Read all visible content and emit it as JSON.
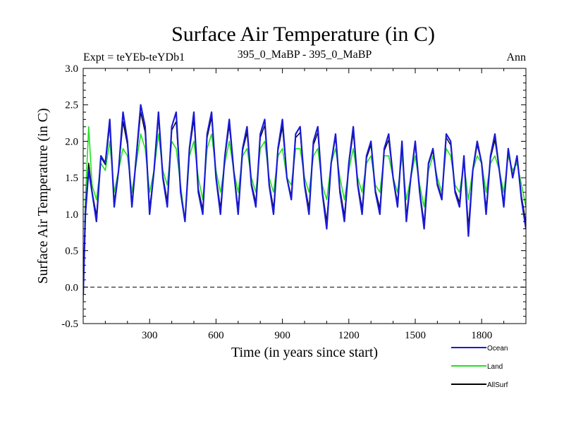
{
  "chart_data": {
    "type": "line",
    "title": "Surface Air Temperature (in C)",
    "subtitle_left": "Expt = teYEb-teYDb1",
    "subtitle_center": "395_0_MaBP - 395_0_MaBP",
    "subtitle_right": "Ann",
    "xlabel": "Time (in years since start)",
    "ylabel": "Surface Air Temperature (in C)",
    "xlim": [
      0,
      2000
    ],
    "ylim": [
      -0.5,
      3.0
    ],
    "x_ticks": [
      300,
      600,
      900,
      1200,
      1500,
      1800
    ],
    "y_ticks": [
      -0.5,
      0.0,
      0.5,
      1.0,
      1.5,
      2.0,
      2.5,
      3.0
    ],
    "y_tick_labels": [
      "-0.5",
      "0.0",
      "0.5",
      "1.0",
      "1.5",
      "2.0",
      "2.5",
      "3.0"
    ],
    "reference_line": {
      "y": 0.0,
      "style": "dashed"
    },
    "legend_position": "bottom-right",
    "colors": {
      "Ocean": "#1a1ad6",
      "Land": "#22e022",
      "AllSurf": "#000000"
    },
    "series": [
      {
        "name": "Ocean",
        "x": [
          0,
          10,
          25,
          40,
          60,
          80,
          100,
          120,
          140,
          160,
          180,
          200,
          220,
          240,
          260,
          280,
          300,
          320,
          340,
          360,
          380,
          400,
          420,
          440,
          460,
          480,
          500,
          520,
          540,
          560,
          580,
          600,
          620,
          640,
          660,
          680,
          700,
          720,
          740,
          760,
          780,
          800,
          820,
          840,
          860,
          880,
          900,
          920,
          940,
          960,
          980,
          1000,
          1020,
          1040,
          1060,
          1080,
          1100,
          1120,
          1140,
          1160,
          1180,
          1200,
          1220,
          1240,
          1260,
          1280,
          1300,
          1320,
          1340,
          1360,
          1380,
          1400,
          1420,
          1440,
          1460,
          1480,
          1500,
          1520,
          1540,
          1560,
          1580,
          1600,
          1620,
          1640,
          1660,
          1680,
          1700,
          1720,
          1740,
          1760,
          1780,
          1800,
          1820,
          1840,
          1860,
          1880,
          1900,
          1920,
          1940,
          1960,
          1980,
          2000
        ],
        "values": [
          -0.1,
          1.0,
          1.6,
          1.3,
          0.9,
          1.8,
          1.7,
          2.3,
          1.1,
          1.6,
          2.4,
          2.0,
          1.1,
          1.8,
          2.5,
          2.2,
          1.0,
          1.6,
          2.4,
          1.5,
          1.1,
          2.2,
          2.4,
          1.3,
          0.9,
          1.9,
          2.4,
          1.3,
          1.0,
          2.1,
          2.4,
          1.5,
          1.0,
          1.8,
          2.3,
          1.6,
          1.0,
          1.9,
          2.2,
          1.4,
          1.1,
          2.1,
          2.3,
          1.4,
          1.0,
          1.9,
          2.3,
          1.5,
          1.2,
          2.1,
          2.2,
          1.4,
          1.0,
          2.0,
          2.2,
          1.3,
          0.8,
          1.7,
          2.1,
          1.3,
          0.9,
          1.7,
          2.2,
          1.4,
          1.0,
          1.8,
          2.0,
          1.3,
          1.0,
          1.9,
          2.1,
          1.5,
          1.1,
          2.0,
          0.9,
          1.5,
          2.0,
          1.3,
          0.8,
          1.7,
          1.9,
          1.4,
          1.2,
          2.1,
          2.0,
          1.3,
          1.1,
          1.8,
          0.7,
          1.6,
          2.0,
          1.7,
          1.0,
          1.8,
          2.1,
          1.6,
          1.1,
          1.9,
          1.5,
          1.8,
          1.2,
          0.8
        ]
      },
      {
        "name": "Land",
        "x": [
          0,
          10,
          25,
          40,
          60,
          80,
          100,
          120,
          140,
          160,
          180,
          200,
          220,
          240,
          260,
          280,
          300,
          320,
          340,
          360,
          380,
          400,
          420,
          440,
          460,
          480,
          500,
          520,
          540,
          560,
          580,
          600,
          620,
          640,
          660,
          680,
          700,
          720,
          740,
          760,
          780,
          800,
          820,
          840,
          860,
          880,
          900,
          920,
          940,
          960,
          980,
          1000,
          1020,
          1040,
          1060,
          1080,
          1100,
          1120,
          1140,
          1160,
          1180,
          1200,
          1220,
          1240,
          1260,
          1280,
          1300,
          1320,
          1340,
          1360,
          1380,
          1400,
          1420,
          1440,
          1460,
          1480,
          1500,
          1520,
          1540,
          1560,
          1580,
          1600,
          1620,
          1640,
          1660,
          1680,
          1700,
          1720,
          1740,
          1760,
          1780,
          1800,
          1820,
          1840,
          1860,
          1880,
          1900,
          1920,
          1940,
          1960,
          1980,
          2000
        ],
        "values": [
          -0.2,
          1.2,
          2.2,
          1.4,
          1.2,
          1.7,
          1.6,
          2.0,
          1.3,
          1.6,
          1.9,
          1.8,
          1.3,
          1.7,
          2.1,
          1.9,
          1.3,
          1.6,
          2.1,
          1.6,
          1.4,
          2.0,
          1.9,
          1.4,
          0.9,
          1.8,
          2.0,
          1.5,
          1.2,
          1.9,
          2.1,
          1.6,
          1.3,
          1.7,
          2.0,
          1.6,
          1.3,
          1.8,
          1.9,
          1.5,
          1.3,
          1.9,
          2.0,
          1.5,
          1.3,
          1.8,
          1.9,
          1.5,
          1.4,
          1.9,
          1.9,
          1.5,
          1.3,
          1.8,
          1.9,
          1.4,
          1.2,
          1.7,
          1.9,
          1.5,
          1.2,
          1.6,
          1.9,
          1.5,
          1.3,
          1.7,
          1.8,
          1.4,
          1.3,
          1.8,
          1.8,
          1.5,
          1.3,
          1.8,
          1.2,
          1.5,
          1.8,
          1.4,
          1.1,
          1.6,
          1.8,
          1.5,
          1.3,
          1.9,
          1.8,
          1.4,
          1.3,
          1.7,
          1.2,
          1.6,
          1.8,
          1.7,
          1.3,
          1.7,
          1.8,
          1.6,
          1.3,
          1.8,
          1.6,
          1.7,
          1.4,
          1.1
        ]
      },
      {
        "name": "AllSurf",
        "x": [
          0,
          10,
          25,
          40,
          60,
          80,
          100,
          120,
          140,
          160,
          180,
          200,
          220,
          240,
          260,
          280,
          300,
          320,
          340,
          360,
          380,
          400,
          420,
          440,
          460,
          480,
          500,
          520,
          540,
          560,
          580,
          600,
          620,
          640,
          660,
          680,
          700,
          720,
          740,
          760,
          780,
          800,
          820,
          840,
          860,
          880,
          900,
          920,
          940,
          960,
          980,
          1000,
          1020,
          1040,
          1060,
          1080,
          1100,
          1120,
          1140,
          1160,
          1180,
          1200,
          1220,
          1240,
          1260,
          1280,
          1300,
          1320,
          1340,
          1360,
          1380,
          1400,
          1420,
          1440,
          1460,
          1480,
          1500,
          1520,
          1540,
          1560,
          1580,
          1600,
          1620,
          1640,
          1660,
          1680,
          1700,
          1720,
          1740,
          1760,
          1780,
          1800,
          1820,
          1840,
          1860,
          1880,
          1900,
          1920,
          1940,
          1960,
          1980,
          2000
        ],
        "values": [
          -0.1,
          1.05,
          1.7,
          1.32,
          0.98,
          1.78,
          1.68,
          2.22,
          1.16,
          1.6,
          2.27,
          1.95,
          1.16,
          1.77,
          2.4,
          2.12,
          1.08,
          1.6,
          2.32,
          1.53,
          1.18,
          2.15,
          2.27,
          1.33,
          0.9,
          1.87,
          2.3,
          1.35,
          1.06,
          2.05,
          2.33,
          1.53,
          1.08,
          1.77,
          2.22,
          1.6,
          1.08,
          1.87,
          2.12,
          1.43,
          1.16,
          2.05,
          2.22,
          1.43,
          1.08,
          1.87,
          2.2,
          1.5,
          1.25,
          2.05,
          2.12,
          1.43,
          1.08,
          1.95,
          2.12,
          1.33,
          0.9,
          1.7,
          2.05,
          1.35,
          0.98,
          1.68,
          2.12,
          1.43,
          1.08,
          1.77,
          1.95,
          1.33,
          1.08,
          1.87,
          2.02,
          1.5,
          1.16,
          1.95,
          0.98,
          1.5,
          1.95,
          1.33,
          0.88,
          1.68,
          1.87,
          1.43,
          1.23,
          2.05,
          1.95,
          1.33,
          1.16,
          1.77,
          0.83,
          1.6,
          1.95,
          1.7,
          1.08,
          1.77,
          2.02,
          1.6,
          1.16,
          1.87,
          1.53,
          1.77,
          1.25,
          0.88
        ]
      }
    ]
  }
}
